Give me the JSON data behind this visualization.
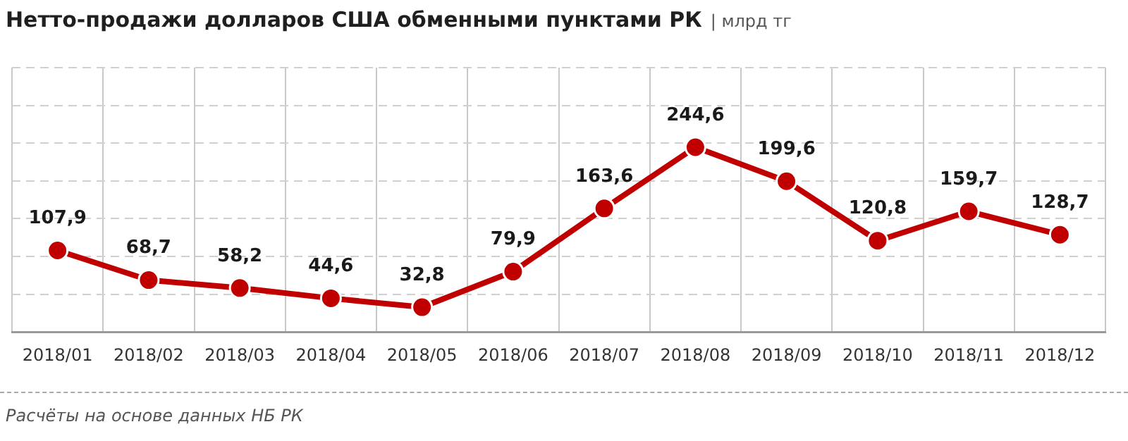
{
  "chart_data": {
    "type": "line",
    "title": "Нетто-продажи долларов США обменными пунктами РК",
    "subtitle": "| млрд тг",
    "categories": [
      "2018/01",
      "2018/02",
      "2018/03",
      "2018/04",
      "2018/05",
      "2018/06",
      "2018/07",
      "2018/08",
      "2018/09",
      "2018/10",
      "2018/11",
      "2018/12"
    ],
    "series": [
      {
        "color": "#c00000",
        "values": [
          107.9,
          68.7,
          58.2,
          44.6,
          32.8,
          79.9,
          163.6,
          244.6,
          199.6,
          120.8,
          159.7,
          128.7
        ],
        "value_labels": [
          "107,9",
          "68,7",
          "58,2",
          "44,6",
          "32,8",
          "79,9",
          "163,6",
          "244,6",
          "199,6",
          "120,8",
          "159,7",
          "128,7"
        ]
      }
    ],
    "ylim": [
      0,
      350
    ],
    "yticks": [
      {
        "value": 0,
        "label": null
      },
      {
        "value": 50,
        "label": null
      },
      {
        "value": 100,
        "label": null
      },
      {
        "value": 150,
        "label": null
      },
      {
        "value": 200,
        "label": null
      },
      {
        "value": 250,
        "label": null
      },
      {
        "value": 300,
        "label": null
      },
      {
        "value": 350,
        "label": null
      }
    ],
    "tick_labels": "x",
    "grid": true,
    "legend": false,
    "marker": "circle",
    "line_style": "solid",
    "annotations": [
      "Расчёты на основе данных НБ РК"
    ]
  }
}
